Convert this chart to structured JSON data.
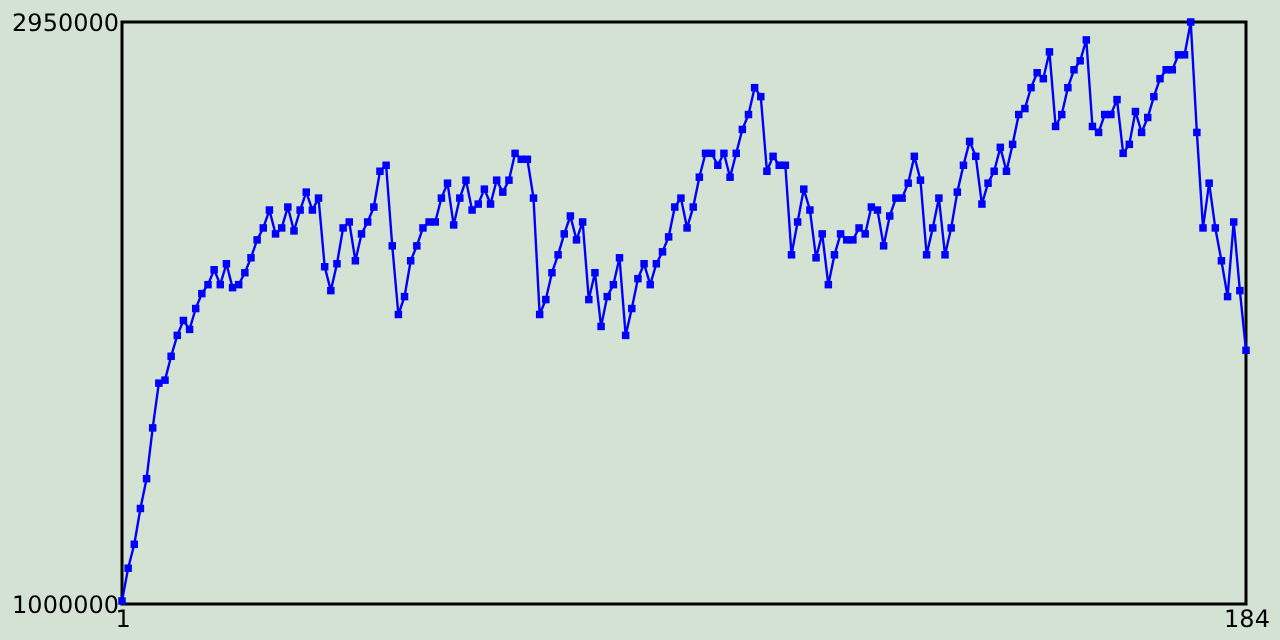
{
  "chart_data": {
    "type": "line",
    "marker": "square",
    "line_style": "solid",
    "grid": false,
    "legend": false,
    "xlim": [
      1,
      184
    ],
    "xticks": [
      1,
      184
    ],
    "ylim": [
      1000000,
      2950000
    ],
    "yticks": [
      1000000,
      2950000
    ],
    "x": [
      1,
      2,
      3,
      4,
      5,
      6,
      7,
      8,
      9,
      10,
      11,
      12,
      13,
      14,
      15,
      16,
      17,
      18,
      19,
      20,
      21,
      22,
      23,
      24,
      25,
      26,
      27,
      28,
      29,
      30,
      31,
      32,
      33,
      34,
      35,
      36,
      37,
      38,
      39,
      40,
      41,
      42,
      43,
      44,
      45,
      46,
      47,
      48,
      49,
      50,
      51,
      52,
      53,
      54,
      55,
      56,
      57,
      58,
      59,
      60,
      61,
      62,
      63,
      64,
      65,
      66,
      67,
      68,
      69,
      70,
      71,
      72,
      73,
      74,
      75,
      76,
      77,
      78,
      79,
      80,
      81,
      82,
      83,
      84,
      85,
      86,
      87,
      88,
      89,
      90,
      91,
      92,
      93,
      94,
      95,
      96,
      97,
      98,
      99,
      100,
      101,
      102,
      103,
      104,
      105,
      106,
      107,
      108,
      109,
      110,
      111,
      112,
      113,
      114,
      115,
      116,
      117,
      118,
      119,
      120,
      121,
      122,
      123,
      124,
      125,
      126,
      127,
      128,
      129,
      130,
      131,
      132,
      133,
      134,
      135,
      136,
      137,
      138,
      139,
      140,
      141,
      142,
      143,
      144,
      145,
      146,
      147,
      148,
      149,
      150,
      151,
      152,
      153,
      154,
      155,
      156,
      157,
      158,
      159,
      160,
      161,
      162,
      163,
      164,
      165,
      166,
      167,
      168,
      169,
      170,
      171,
      172,
      173,
      174,
      175,
      176,
      177,
      178,
      179,
      180,
      181,
      182,
      183,
      184
    ],
    "series": [
      {
        "color": "#0000ff",
        "values": [
          1010000,
          1120000,
          1200000,
          1320000,
          1420000,
          1590000,
          1740000,
          1750000,
          1830000,
          1900000,
          1950000,
          1920000,
          1990000,
          2040000,
          2070000,
          2120000,
          2070000,
          2140000,
          2060000,
          2070000,
          2110000,
          2160000,
          2220000,
          2260000,
          2320000,
          2240000,
          2260000,
          2330000,
          2250000,
          2320000,
          2380000,
          2320000,
          2360000,
          2130000,
          2050000,
          2140000,
          2260000,
          2280000,
          2150000,
          2240000,
          2280000,
          2330000,
          2450000,
          2470000,
          2200000,
          1970000,
          2030000,
          2150000,
          2200000,
          2260000,
          2280000,
          2280000,
          2360000,
          2410000,
          2270000,
          2360000,
          2420000,
          2320000,
          2340000,
          2390000,
          2340000,
          2420000,
          2380000,
          2420000,
          2510000,
          2490000,
          2490000,
          2360000,
          1970000,
          2020000,
          2110000,
          2170000,
          2240000,
          2300000,
          2220000,
          2280000,
          2020000,
          2110000,
          1930000,
          2030000,
          2070000,
          2160000,
          1900000,
          1990000,
          2090000,
          2140000,
          2070000,
          2140000,
          2180000,
          2230000,
          2330000,
          2360000,
          2260000,
          2330000,
          2430000,
          2510000,
          2510000,
          2470000,
          2510000,
          2430000,
          2510000,
          2590000,
          2640000,
          2730000,
          2700000,
          2450000,
          2500000,
          2470000,
          2470000,
          2170000,
          2280000,
          2390000,
          2320000,
          2160000,
          2240000,
          2070000,
          2170000,
          2240000,
          2220000,
          2220000,
          2260000,
          2240000,
          2330000,
          2320000,
          2200000,
          2300000,
          2360000,
          2360000,
          2410000,
          2500000,
          2420000,
          2170000,
          2260000,
          2360000,
          2170000,
          2260000,
          2380000,
          2470000,
          2550000,
          2500000,
          2340000,
          2410000,
          2450000,
          2530000,
          2450000,
          2540000,
          2640000,
          2660000,
          2730000,
          2780000,
          2760000,
          2850000,
          2600000,
          2640000,
          2730000,
          2790000,
          2820000,
          2890000,
          2600000,
          2580000,
          2640000,
          2640000,
          2690000,
          2510000,
          2540000,
          2650000,
          2580000,
          2630000,
          2700000,
          2760000,
          2790000,
          2790000,
          2840000,
          2840000,
          2950000,
          2580000,
          2260000,
          2410000,
          2260000,
          2150000,
          2030000,
          2280000,
          2050000,
          1850000
        ]
      }
    ]
  }
}
